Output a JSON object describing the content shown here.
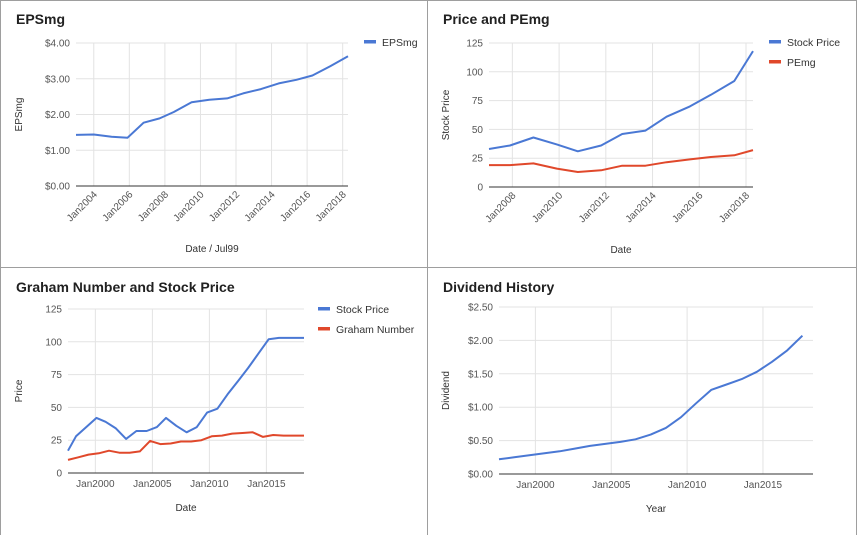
{
  "colors": {
    "blue": "#4a78d4",
    "red": "#e0482b",
    "grid": "#e3e3e3",
    "axis": "#333333"
  },
  "chart_data": [
    {
      "id": "eps",
      "type": "line",
      "title": "EPSmg",
      "xlabel": "Date / Jul99",
      "ylabel": "EPSmg",
      "ylim": [
        0,
        4
      ],
      "yticks": [
        0,
        1,
        2,
        3,
        4
      ],
      "ytick_labels": [
        "$0.00",
        "$1.00",
        "$2.00",
        "$3.00",
        "$4.00"
      ],
      "xlim": [
        2003.0,
        2018.3
      ],
      "xticks": [
        2004,
        2006,
        2008,
        2010,
        2012,
        2014,
        2016,
        2018
      ],
      "xtick_labels": [
        "Jan2004",
        "Jan2006",
        "Jan2008",
        "Jan2010",
        "Jan2012",
        "Jan2014",
        "Jan2016",
        "Jan2018"
      ],
      "xtick_rotate": true,
      "legend_position": "top-right",
      "series": [
        {
          "name": "EPSmg",
          "color": "#4a78d4",
          "x": [
            2003.0,
            2004.0,
            2005.0,
            2005.9,
            2006.8,
            2007.7,
            2008.5,
            2009.5,
            2010.5,
            2011.5,
            2012.4,
            2013.4,
            2014.4,
            2015.4,
            2016.3,
            2017.3,
            2018.3
          ],
          "y": [
            1.43,
            1.44,
            1.38,
            1.35,
            1.77,
            1.89,
            2.07,
            2.34,
            2.41,
            2.45,
            2.59,
            2.71,
            2.87,
            2.97,
            3.09,
            3.35,
            3.63
          ]
        }
      ]
    },
    {
      "id": "price-pe",
      "type": "line",
      "title": "Price and PEmg",
      "xlabel": "Date",
      "ylabel": "Stock Price",
      "ylim": [
        0,
        125
      ],
      "yticks": [
        0,
        25,
        50,
        75,
        100,
        125
      ],
      "ytick_labels": [
        "0",
        "25",
        "50",
        "75",
        "100",
        "125"
      ],
      "xlim": [
        2007.0,
        2018.3
      ],
      "xticks": [
        2008,
        2010,
        2012,
        2014,
        2016,
        2018
      ],
      "xtick_labels": [
        "Jan2008",
        "Jan2010",
        "Jan2012",
        "Jan2014",
        "Jan2016",
        "Jan2018"
      ],
      "xtick_rotate": true,
      "legend_position": "top-right",
      "series": [
        {
          "name": "Stock Price",
          "color": "#4a78d4",
          "x": [
            2007.0,
            2007.9,
            2008.9,
            2009.9,
            2010.8,
            2011.8,
            2012.7,
            2013.7,
            2014.6,
            2015.6,
            2016.5,
            2017.5,
            2018.3
          ],
          "y": [
            33,
            36,
            43,
            37,
            31,
            36,
            46,
            49,
            61,
            70,
            80,
            92,
            118
          ]
        },
        {
          "name": "PEmg",
          "color": "#e0482b",
          "x": [
            2007.0,
            2007.9,
            2008.9,
            2009.9,
            2010.8,
            2011.8,
            2012.7,
            2013.7,
            2014.6,
            2015.6,
            2016.5,
            2017.5,
            2018.3
          ],
          "y": [
            19,
            19,
            20.5,
            16,
            13,
            14.5,
            18.5,
            18.5,
            21.5,
            24,
            26,
            27.5,
            32
          ]
        }
      ]
    },
    {
      "id": "graham",
      "type": "line",
      "title": "Graham Number and Stock Price",
      "xlabel": "Date",
      "ylabel": "Price",
      "ylim": [
        0,
        125
      ],
      "yticks": [
        0,
        25,
        50,
        75,
        100,
        125
      ],
      "ytick_labels": [
        "0",
        "25",
        "50",
        "75",
        "100",
        "125"
      ],
      "xlim": [
        1997.6,
        2018.3
      ],
      "xticks": [
        2000,
        2005,
        2010,
        2015
      ],
      "xtick_labels": [
        "Jan2000",
        "Jan2005",
        "Jan2010",
        "Jan2015"
      ],
      "xtick_rotate": false,
      "legend_position": "top-right",
      "series": [
        {
          "name": "Stock Price",
          "color": "#4a78d4",
          "x": [
            1997.6,
            1998.3,
            1999.2,
            2000.1,
            2000.9,
            2001.8,
            2002.7,
            2003.6,
            2004.5,
            2005.4,
            2006.2,
            2007.1,
            2008.0,
            2008.9,
            2009.8,
            2010.7,
            2011.6,
            2012.5,
            2013.4,
            2014.3,
            2015.2,
            2016.1,
            2017.0,
            2018.3
          ],
          "y": [
            17,
            28,
            35,
            42,
            39,
            34,
            26,
            32,
            32,
            35,
            42,
            36,
            31,
            35,
            46,
            49,
            60,
            70,
            80,
            91,
            102,
            103,
            103,
            103
          ]
        },
        {
          "name": "Graham Number",
          "color": "#e0482b",
          "x": [
            1997.6,
            1998.5,
            1999.4,
            2000.3,
            2001.2,
            2002.1,
            2003.0,
            2003.9,
            2004.8,
            2005.7,
            2006.6,
            2007.5,
            2008.4,
            2009.3,
            2010.2,
            2011.1,
            2012.0,
            2012.9,
            2013.8,
            2014.7,
            2015.6,
            2016.5,
            2017.4,
            2018.3
          ],
          "y": [
            10,
            12,
            14,
            15,
            17,
            15.5,
            15.5,
            16.5,
            24.5,
            22,
            22.5,
            24,
            24,
            25,
            28,
            28.5,
            30,
            30.5,
            31,
            27.5,
            29,
            28.5,
            28.5,
            28.5
          ]
        }
      ]
    },
    {
      "id": "dividend",
      "type": "line",
      "title": "Dividend History",
      "xlabel": "Year",
      "ylabel": "Dividend",
      "ylim": [
        0,
        2.5
      ],
      "yticks": [
        0,
        0.5,
        1,
        1.5,
        2,
        2.5
      ],
      "ytick_labels": [
        "$0.00",
        "$0.50",
        "$1.00",
        "$1.50",
        "$2.00",
        "$2.50"
      ],
      "xlim": [
        1997.6,
        2018.3
      ],
      "xticks": [
        2000,
        2005,
        2010,
        2015
      ],
      "xtick_labels": [
        "Jan2000",
        "Jan2005",
        "Jan2010",
        "Jan2015"
      ],
      "xtick_rotate": false,
      "legend_position": "none",
      "series": [
        {
          "color": "#4a78d4",
          "x": [
            1997.6,
            1998.6,
            1999.6,
            2000.6,
            2001.6,
            2002.6,
            2003.6,
            2004.6,
            2005.6,
            2006.6,
            2007.6,
            2008.6,
            2009.6,
            2010.6,
            2011.6,
            2012.6,
            2013.6,
            2014.6,
            2015.6,
            2016.6,
            2017.6
          ],
          "y": [
            0.22,
            0.25,
            0.28,
            0.31,
            0.34,
            0.38,
            0.42,
            0.45,
            0.48,
            0.52,
            0.59,
            0.69,
            0.85,
            1.06,
            1.26,
            1.34,
            1.42,
            1.53,
            1.68,
            1.85,
            2.07
          ]
        }
      ]
    }
  ]
}
